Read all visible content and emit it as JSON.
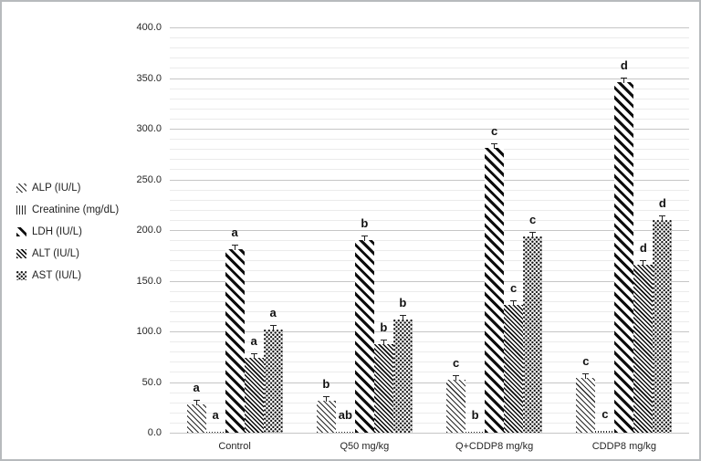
{
  "figure": {
    "background_color": "#ffffff",
    "frame_border_color": "#b7babd"
  },
  "colors": {
    "bar_pattern": "#111111",
    "gridline_minor": "#ebebeb",
    "gridline_major": "#c6c6c6",
    "axis_text": "#262626"
  },
  "chart_data": {
    "type": "bar",
    "title": "",
    "xlabel": "",
    "ylabel": "",
    "categories": [
      "Control",
      "Q50 mg/kg",
      "Q+CDDP8 mg/kg",
      "CDDP8 mg/kg"
    ],
    "series": [
      {
        "name": "ALP (IU/L)",
        "pattern": "diagonal-light",
        "values": [
          28,
          32,
          52,
          54
        ],
        "letters": [
          "a",
          "b",
          "c",
          "c"
        ]
      },
      {
        "name": "Creatinine (mg/dL)",
        "pattern": "vertical-lines",
        "values": [
          0.8,
          0.9,
          1.1,
          1.9
        ],
        "letters": [
          "a",
          "ab",
          "b",
          "c"
        ]
      },
      {
        "name": "LDH (IU/L)",
        "pattern": "diagonal-wide",
        "values": [
          181,
          190,
          281,
          346
        ],
        "letters": [
          "a",
          "b",
          "c",
          "d"
        ]
      },
      {
        "name": "ALT (IU/L)",
        "pattern": "diagonal-dense",
        "values": [
          74,
          87,
          126,
          166
        ],
        "letters": [
          "a",
          "b",
          "c",
          "d"
        ]
      },
      {
        "name": "AST (IU/L)",
        "pattern": "dotted-diamond",
        "values": [
          102,
          112,
          194,
          210
        ],
        "letters": [
          "a",
          "b",
          "c",
          "d"
        ]
      }
    ],
    "ylim": [
      0,
      400
    ],
    "ytick_step": 50,
    "minor_gridline_step": 10,
    "ytick_labels": [
      "0.0",
      "50.0",
      "100.0",
      "150.0",
      "200.0",
      "250.0",
      "300.0",
      "350.0",
      "400.0"
    ],
    "grid": true,
    "error_bars": true,
    "legend_position": "left"
  }
}
